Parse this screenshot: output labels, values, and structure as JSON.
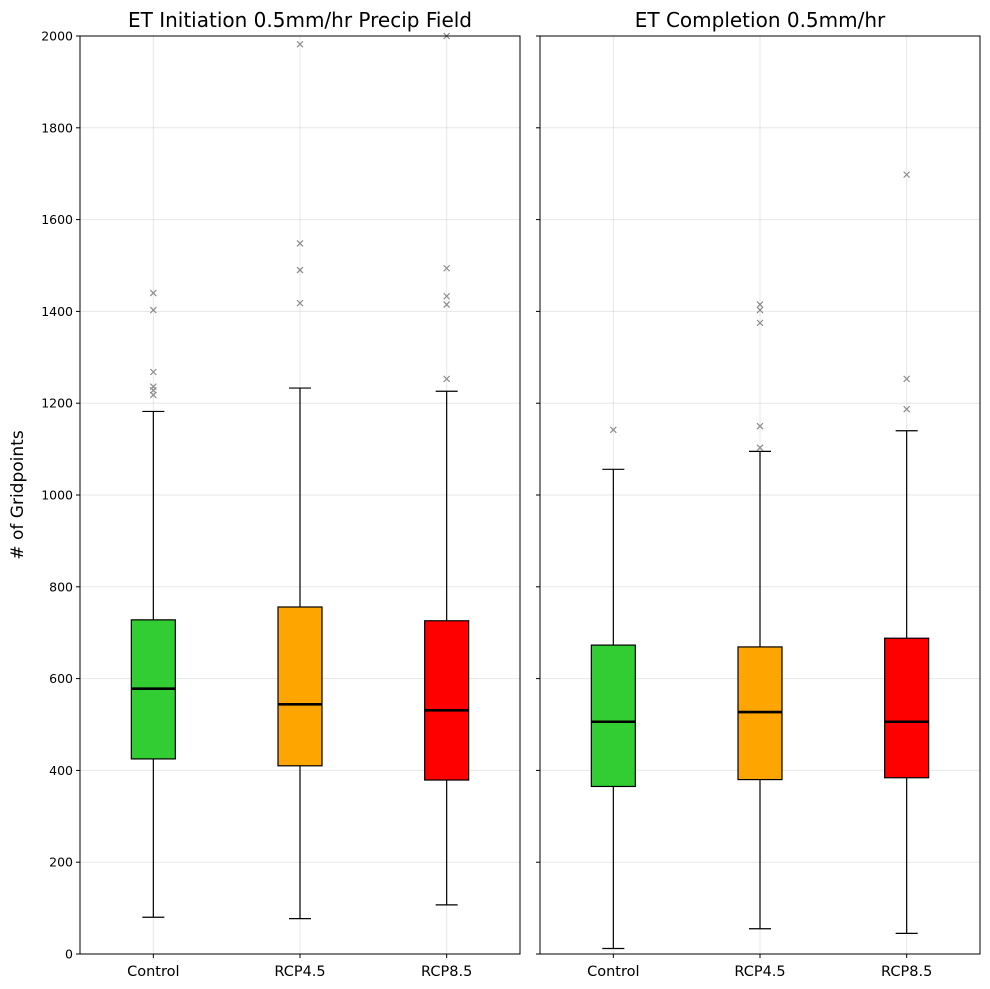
{
  "chart_data": [
    {
      "type": "box",
      "title": "ET Initiation 0.5mm/hr Precip Field",
      "ylabel": "# of Gridpoints",
      "xlabel": "",
      "ylim": [
        0,
        2000
      ],
      "yticks": [
        0,
        200,
        400,
        600,
        800,
        1000,
        1200,
        1400,
        1600,
        1800,
        2000
      ],
      "grid": true,
      "categories": [
        "Control",
        "RCP4.5",
        "RCP8.5"
      ],
      "boxes": [
        {
          "name": "Control",
          "color": "#32cd32",
          "whisker_low": 80,
          "q1": 425,
          "median": 578,
          "q3": 728,
          "whisker_high": 1182,
          "outliers": [
            1218,
            1228,
            1236,
            1268,
            1403,
            1440
          ]
        },
        {
          "name": "RCP4.5",
          "color": "#ffa500",
          "whisker_low": 77,
          "q1": 410,
          "median": 544,
          "q3": 756,
          "whisker_high": 1233,
          "outliers": [
            1418,
            1490,
            1548,
            1982
          ]
        },
        {
          "name": "RCP8.5",
          "color": "#ff0000",
          "whisker_low": 107,
          "q1": 379,
          "median": 531,
          "q3": 726,
          "whisker_high": 1226,
          "outliers": [
            1253,
            1415,
            1433,
            1494,
            2000
          ]
        }
      ]
    },
    {
      "type": "box",
      "title": "ET Completion 0.5mm/hr",
      "ylabel": "",
      "xlabel": "",
      "ylim": [
        0,
        2000
      ],
      "yticks": [
        0,
        200,
        400,
        600,
        800,
        1000,
        1200,
        1400,
        1600,
        1800,
        2000
      ],
      "shared_y": true,
      "grid": true,
      "categories": [
        "Control",
        "RCP4.5",
        "RCP8.5"
      ],
      "boxes": [
        {
          "name": "Control",
          "color": "#32cd32",
          "whisker_low": 12,
          "q1": 365,
          "median": 506,
          "q3": 673,
          "whisker_high": 1056,
          "outliers": [
            1142
          ]
        },
        {
          "name": "RCP4.5",
          "color": "#ffa500",
          "whisker_low": 55,
          "q1": 380,
          "median": 527,
          "q3": 669,
          "whisker_high": 1095,
          "outliers": [
            1103,
            1150,
            1375,
            1403,
            1415
          ]
        },
        {
          "name": "RCP8.5",
          "color": "#ff0000",
          "whisker_low": 45,
          "q1": 384,
          "median": 506,
          "q3": 688,
          "whisker_high": 1140,
          "outliers": [
            1187,
            1253,
            1698
          ]
        }
      ]
    }
  ]
}
